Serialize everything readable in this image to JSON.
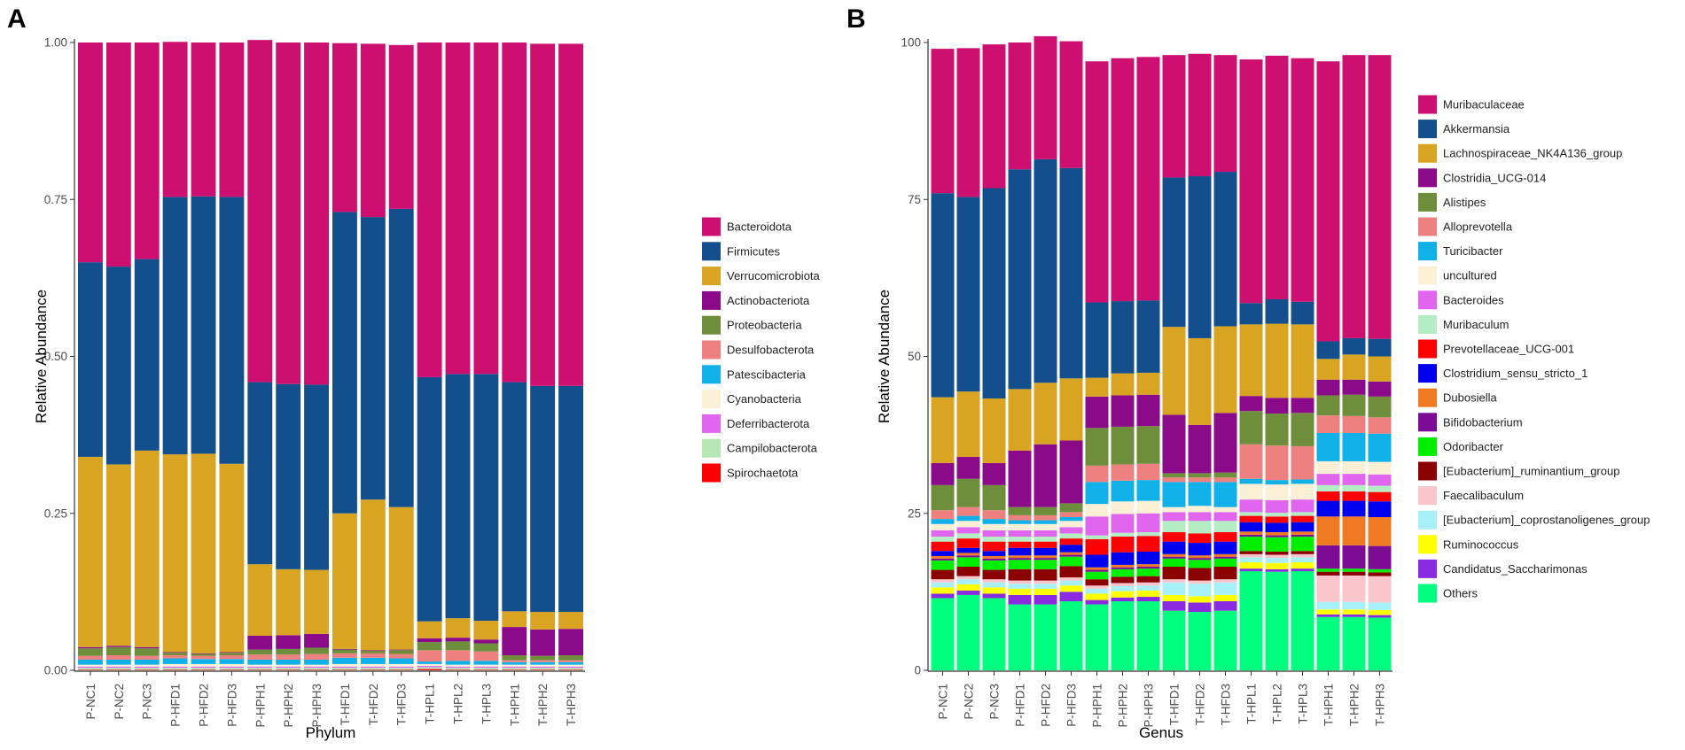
{
  "chart_data": [
    {
      "panel": "A",
      "type": "bar",
      "stacked": true,
      "xlabel": "Phylum",
      "ylabel": "Relative Abundance",
      "ylim": [
        0,
        1
      ],
      "yticks": [
        "0.00",
        "0.25",
        "0.50",
        "0.75",
        "1.00"
      ],
      "ytick_values": [
        0,
        0.25,
        0.5,
        0.75,
        1.0
      ],
      "grid": false,
      "legend_position": "right",
      "categories": [
        "P-NC1",
        "P-NC2",
        "P-NC3",
        "P-HFD1",
        "P-HFD2",
        "P-HFD3",
        "P-HPH1",
        "P-HPH2",
        "P-HPH3",
        "T-HFD1",
        "T-HFD2",
        "T-HFD3",
        "T-HPL1",
        "T-HPL2",
        "T-HPL3",
        "T-HPH1",
        "T-HPH2",
        "T-HPH3"
      ],
      "series": [
        {
          "name": "Spirochaetota",
          "color": "#ff0000",
          "values": [
            0.001,
            0.001,
            0.001,
            0.001,
            0.001,
            0.001,
            0.001,
            0.001,
            0.001,
            0.001,
            0.001,
            0.001,
            0.002,
            0.001,
            0.001,
            0.001,
            0.001,
            0.001
          ]
        },
        {
          "name": "Campilobacterota",
          "color": "#b5e8b5",
          "values": [
            0.003,
            0.003,
            0.003,
            0.003,
            0.003,
            0.003,
            0.003,
            0.003,
            0.003,
            0.003,
            0.003,
            0.003,
            0.003,
            0.003,
            0.003,
            0.003,
            0.003,
            0.003
          ]
        },
        {
          "name": "Deferribacterota",
          "color": "#e066ef",
          "values": [
            0.002,
            0.002,
            0.002,
            0.002,
            0.002,
            0.002,
            0.002,
            0.002,
            0.002,
            0.002,
            0.002,
            0.002,
            0.002,
            0.002,
            0.002,
            0.002,
            0.002,
            0.002
          ]
        },
        {
          "name": "Cyanobacteria",
          "color": "#fbefd5",
          "values": [
            0.003,
            0.003,
            0.003,
            0.004,
            0.004,
            0.004,
            0.003,
            0.003,
            0.003,
            0.004,
            0.004,
            0.004,
            0.003,
            0.003,
            0.003,
            0.003,
            0.003,
            0.003
          ]
        },
        {
          "name": "Patescibacteria",
          "color": "#10b0e8",
          "values": [
            0.008,
            0.008,
            0.008,
            0.009,
            0.008,
            0.008,
            0.008,
            0.008,
            0.008,
            0.01,
            0.01,
            0.009,
            0.004,
            0.006,
            0.006,
            0.004,
            0.004,
            0.004
          ]
        },
        {
          "name": "Desulfobacterota",
          "color": "#ef8080",
          "values": [
            0.006,
            0.007,
            0.006,
            0.005,
            0.005,
            0.006,
            0.008,
            0.008,
            0.009,
            0.007,
            0.007,
            0.007,
            0.018,
            0.017,
            0.015,
            0.003,
            0.003,
            0.003
          ]
        },
        {
          "name": "Proteobacteria",
          "color": "#6f8e3c",
          "values": [
            0.012,
            0.013,
            0.012,
            0.004,
            0.003,
            0.004,
            0.008,
            0.009,
            0.01,
            0.006,
            0.004,
            0.006,
            0.013,
            0.014,
            0.013,
            0.008,
            0.007,
            0.008
          ]
        },
        {
          "name": "Actinobacteriota",
          "color": "#8a0a8a",
          "values": [
            0.002,
            0.002,
            0.002,
            0.001,
            0.001,
            0.001,
            0.022,
            0.022,
            0.022,
            0.001,
            0.001,
            0.001,
            0.006,
            0.006,
            0.006,
            0.045,
            0.042,
            0.042
          ]
        },
        {
          "name": "Verrucomicrobiota",
          "color": "#d9a421",
          "values": [
            0.303,
            0.289,
            0.313,
            0.315,
            0.318,
            0.3,
            0.114,
            0.105,
            0.102,
            0.216,
            0.24,
            0.227,
            0.027,
            0.031,
            0.03,
            0.025,
            0.028,
            0.027
          ]
        },
        {
          "name": "Firmicutes",
          "color": "#134f8c",
          "values": [
            0.31,
            0.315,
            0.305,
            0.41,
            0.41,
            0.425,
            0.29,
            0.295,
            0.295,
            0.48,
            0.45,
            0.475,
            0.389,
            0.389,
            0.393,
            0.365,
            0.36,
            0.36
          ]
        },
        {
          "name": "Bacteroidota",
          "color": "#cd0f72",
          "values": [
            0.35,
            0.357,
            0.345,
            0.247,
            0.245,
            0.246,
            0.545,
            0.544,
            0.545,
            0.269,
            0.276,
            0.261,
            0.533,
            0.528,
            0.528,
            0.541,
            0.545,
            0.545
          ]
        }
      ],
      "legend": [
        "Bacteroidota",
        "Firmicutes",
        "Verrucomicrobiota",
        "Actinobacteriota",
        "Proteobacteria",
        "Desulfobacterota",
        "Patescibacteria",
        "Cyanobacteria",
        "Deferribacterota",
        "Campilobacterota",
        "Spirochaetota"
      ]
    },
    {
      "panel": "B",
      "type": "bar",
      "stacked": true,
      "xlabel": "Genus",
      "ylabel": "Relative Abundance",
      "ylim": [
        0,
        100
      ],
      "yticks": [
        "0",
        "25",
        "50",
        "75",
        "100"
      ],
      "ytick_values": [
        0,
        25,
        50,
        75,
        100
      ],
      "grid": false,
      "legend_position": "right",
      "categories": [
        "P-NC1",
        "P-NC2",
        "P-NC3",
        "P-HFD1",
        "P-HFD2",
        "P-HFD3",
        "P-HPH1",
        "P-HPH2",
        "P-HPH3",
        "T-HFD1",
        "T-HFD2",
        "T-HFD3",
        "T-HPL1",
        "T-HPL2",
        "T-HPL3",
        "T-HPH1",
        "T-HPH2",
        "T-HPH3"
      ],
      "series": [
        {
          "name": "Others",
          "color": "#00ff7f",
          "values": [
            11.5,
            12,
            11.5,
            10.5,
            10.5,
            11,
            10.5,
            11,
            11,
            9.5,
            9.3,
            9.5,
            15.8,
            15.7,
            15.8,
            8.5,
            8.5,
            8.4
          ]
        },
        {
          "name": "Candidatus_Saccharimonas",
          "color": "#8a2be2",
          "values": [
            0.7,
            0.7,
            0.7,
            1.5,
            1.5,
            1.5,
            0.7,
            0.6,
            0.7,
            1.5,
            1.5,
            1.5,
            0.4,
            0.4,
            0.4,
            0.4,
            0.4,
            0.4
          ]
        },
        {
          "name": "Ruminococcus",
          "color": "#ffff00",
          "values": [
            1,
            1,
            1,
            1,
            1,
            1,
            1,
            1,
            1,
            1,
            1,
            1,
            1,
            1,
            1,
            0.8,
            0.8,
            0.8
          ]
        },
        {
          "name": "[Eubacterium]_coprostanoligenes_group",
          "color": "#a8f0f8",
          "values": [
            0.8,
            0.8,
            0.8,
            0.8,
            0.8,
            0.8,
            0.8,
            0.8,
            0.8,
            2,
            2,
            2,
            0.8,
            0.8,
            0.8,
            1.2,
            1.2,
            1.2
          ]
        },
        {
          "name": "Faecalibaculum",
          "color": "#fac6cc",
          "values": [
            0.5,
            0.5,
            0.5,
            0.5,
            0.5,
            0.5,
            0.5,
            0.5,
            0.5,
            0.5,
            0.5,
            0.5,
            0.5,
            0.5,
            0.5,
            4.2,
            4.2,
            4.2
          ]
        },
        {
          "name": "[Eubacterium]_ruminantium_group",
          "color": "#8b0000",
          "values": [
            1.5,
            1.5,
            1.5,
            1.8,
            1.8,
            1.8,
            1,
            1,
            1,
            2,
            2,
            2,
            0.5,
            0.5,
            0.5,
            0.6,
            0.6,
            0.6
          ]
        },
        {
          "name": "Odoribacter",
          "color": "#00ee00",
          "values": [
            1.5,
            1.5,
            1.5,
            1.5,
            1.5,
            1.5,
            1.2,
            1.2,
            1.2,
            1.3,
            1.3,
            1.3,
            2.3,
            2.3,
            2.3,
            0.5,
            0.5,
            0.5
          ]
        },
        {
          "name": "Bifidobacterium",
          "color": "#7d0c94",
          "values": [
            0.3,
            0.3,
            0.3,
            0.3,
            0.3,
            0.3,
            0.3,
            0.3,
            0.3,
            0.3,
            0.3,
            0.3,
            0.3,
            0.3,
            0.3,
            3.7,
            3.7,
            3.7
          ]
        },
        {
          "name": "Dubosiella",
          "color": "#f07a21",
          "values": [
            0.4,
            0.4,
            0.4,
            0.4,
            0.4,
            0.4,
            0.4,
            0.4,
            0.4,
            0.4,
            0.4,
            0.4,
            0.5,
            0.5,
            0.5,
            4.6,
            4.6,
            4.6
          ]
        },
        {
          "name": "Clostridium_sensu_stricto_1",
          "color": "#0000ee",
          "values": [
            0.8,
            0.8,
            0.8,
            1.2,
            1.2,
            1.2,
            2,
            2,
            2,
            2,
            2,
            2,
            1.5,
            1.5,
            1.5,
            2.5,
            2.5,
            2.5
          ]
        },
        {
          "name": "Prevotellaceae_UCG-001",
          "color": "#ff0000",
          "values": [
            1.5,
            1.5,
            1.5,
            1,
            1,
            1,
            2.5,
            2.5,
            2.5,
            1.5,
            1.5,
            1.5,
            1,
            1,
            1,
            1.5,
            1.5,
            1.5
          ]
        },
        {
          "name": "Muribaculum",
          "color": "#b4ecc4",
          "values": [
            0.8,
            0.8,
            0.8,
            0.8,
            0.8,
            0.8,
            0.6,
            0.6,
            0.6,
            1.8,
            2,
            1.8,
            0.6,
            0.6,
            0.6,
            1,
            1,
            1
          ]
        },
        {
          "name": "Bacteroides",
          "color": "#e066ef",
          "values": [
            1,
            1,
            1,
            1,
            1,
            1,
            3,
            3,
            3,
            1.4,
            1.4,
            1.4,
            2,
            2,
            2,
            1.8,
            1.8,
            1.8
          ]
        },
        {
          "name": "uncultured",
          "color": "#fbefd5",
          "values": [
            1,
            1,
            1,
            1,
            1,
            1,
            2,
            2,
            2,
            0.8,
            1,
            0.8,
            2.5,
            2.5,
            2.5,
            2,
            2,
            2
          ]
        },
        {
          "name": "Turicibacter",
          "color": "#10b0e8",
          "values": [
            0.8,
            0.8,
            0.8,
            0.6,
            0.6,
            0.6,
            3.5,
            3.3,
            3.3,
            4,
            3.8,
            4,
            0.8,
            0.7,
            0.7,
            4.5,
            4.5,
            4.5
          ]
        },
        {
          "name": "Alloprevotella",
          "color": "#ef8080",
          "values": [
            1.4,
            1.4,
            1.4,
            0.8,
            0.8,
            0.8,
            2.6,
            2.6,
            2.6,
            0.7,
            0.7,
            0.7,
            5.5,
            5.5,
            5.3,
            2.8,
            2.7,
            2.6
          ]
        },
        {
          "name": "Alistipes",
          "color": "#6f8e3c",
          "values": [
            4,
            4.5,
            4,
            1.3,
            1.3,
            1.4,
            6,
            6,
            6,
            0.7,
            0.7,
            0.8,
            5.3,
            5.1,
            5.3,
            3.2,
            3.4,
            3.3
          ]
        },
        {
          "name": "Clostridia_UCG-014",
          "color": "#8a0a8a",
          "values": [
            3.5,
            3.5,
            3.5,
            9,
            10,
            10,
            5,
            5,
            5,
            9.3,
            7.7,
            9.5,
            2.4,
            2.5,
            2.4,
            2.5,
            2.4,
            2.4
          ]
        },
        {
          "name": "Lachnospiraceae_NK4A136_group",
          "color": "#d9a421",
          "values": [
            10.5,
            10.4,
            10.3,
            9.8,
            9.8,
            9.9,
            3,
            3.5,
            3.5,
            14,
            13.8,
            13.8,
            11.4,
            11.8,
            11.7,
            3.3,
            4,
            4
          ]
        },
        {
          "name": "Akkermansia",
          "color": "#134f8c",
          "values": [
            32.5,
            31,
            33.5,
            35,
            35.6,
            33.5,
            12,
            11.5,
            11.5,
            23.8,
            25.8,
            24.6,
            3.4,
            3.9,
            3.6,
            2.8,
            2.6,
            2.8
          ]
        },
        {
          "name": "Muribaculaceae",
          "color": "#cd0f72",
          "values": [
            23,
            23.7,
            22.9,
            20.2,
            19.6,
            20.2,
            38.4,
            38.7,
            38.8,
            19.5,
            19.5,
            18.6,
            38.8,
            38.8,
            38.8,
            44.6,
            45.1,
            45.2
          ]
        }
      ],
      "legend": [
        "Muribaculaceae",
        "Akkermansia",
        "Lachnospiraceae_NK4A136_group",
        "Clostridia_UCG-014",
        "Alistipes",
        "Alloprevotella",
        "Turicibacter",
        "uncultured",
        "Bacteroides",
        "Muribaculum",
        "Prevotellaceae_UCG-001",
        "Clostridium_sensu_stricto_1",
        "Dubosiella",
        "Bifidobacterium",
        "Odoribacter",
        "[Eubacterium]_ruminantium_group",
        "Faecalibaculum",
        "[Eubacterium]_coprostanoligenes_group",
        "Ruminococcus",
        "Candidatus_Saccharimonas",
        "Others"
      ]
    }
  ]
}
